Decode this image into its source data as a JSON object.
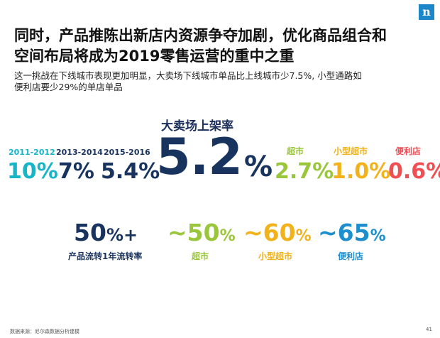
{
  "logo_letter": "n",
  "title_line1": "同时，产品推陈出新店内资源争夺加剧，优化商品组合和",
  "title_line2": "空间布局将成为2019零售运营的重中之重",
  "subtitle_line1": "这一挑战在下线城市表现更加明显，大卖场下线城市单品比上线城市少7.5%, 小型通路如",
  "subtitle_line2": "便利店要少29%的单店单品",
  "shelf_rate": {
    "label": "大卖场上架率",
    "main_value": "5.2",
    "main_unit": "%",
    "periods": [
      {
        "label": "2011-2012",
        "value": "10%"
      },
      {
        "label": "2013-2014",
        "value": "7%"
      },
      {
        "label": "2015-2016",
        "value": "5.4%"
      }
    ],
    "channels": [
      {
        "label": "超市",
        "value": "2.7%"
      },
      {
        "label": "小型超市",
        "value": "1.0%"
      },
      {
        "label": "便利店",
        "value": "0.6%"
      }
    ]
  },
  "turnover": {
    "main_num": "50",
    "main_suffix": "%+",
    "main_label": "产品流转1年流转率",
    "channels": [
      {
        "num": "~50",
        "pct": "%",
        "label": "超市"
      },
      {
        "num": "~60",
        "pct": "%",
        "label": "小型超市"
      },
      {
        "num": "~65",
        "pct": "%",
        "label": "便利店"
      }
    ]
  },
  "footer_source": "数据来源：尼尔森数据分析建模",
  "page_number": "41",
  "colors": {
    "teal": "#16b5c8",
    "navy": "#19335f",
    "green": "#9ac63c",
    "yellow": "#f1b21b",
    "red": "#ef4e55",
    "brand_blue": "#1b87c9"
  }
}
